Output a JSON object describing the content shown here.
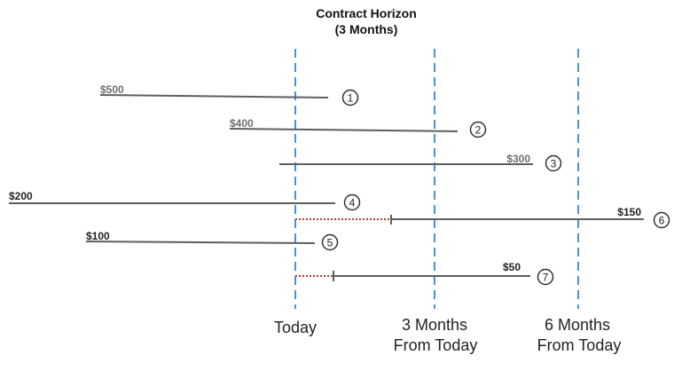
{
  "title": {
    "line1": "Contract Horizon",
    "line2": "(3 Months)"
  },
  "colors": {
    "marker_line": "#4a90e2",
    "contract_line": "#5f5f5f",
    "gap_line": "#c0392b",
    "label_text": "#6e6e6e",
    "dark_label_text": "#222222"
  },
  "markers": [
    {
      "id": "today",
      "label_lines": [
        "Today"
      ]
    },
    {
      "id": "3m",
      "label_lines": [
        "3 Months",
        "From Today"
      ]
    },
    {
      "id": "6m",
      "label_lines": [
        "6 Months",
        "From Today"
      ]
    }
  ],
  "contracts": [
    {
      "number": "1",
      "amount": "$500"
    },
    {
      "number": "2",
      "amount": "$400"
    },
    {
      "number": "3",
      "amount": "$300"
    },
    {
      "number": "4",
      "amount": "$200"
    },
    {
      "number": "5",
      "amount": "$100"
    },
    {
      "number": "6",
      "amount": "$150"
    },
    {
      "number": "7",
      "amount": "$50"
    }
  ]
}
